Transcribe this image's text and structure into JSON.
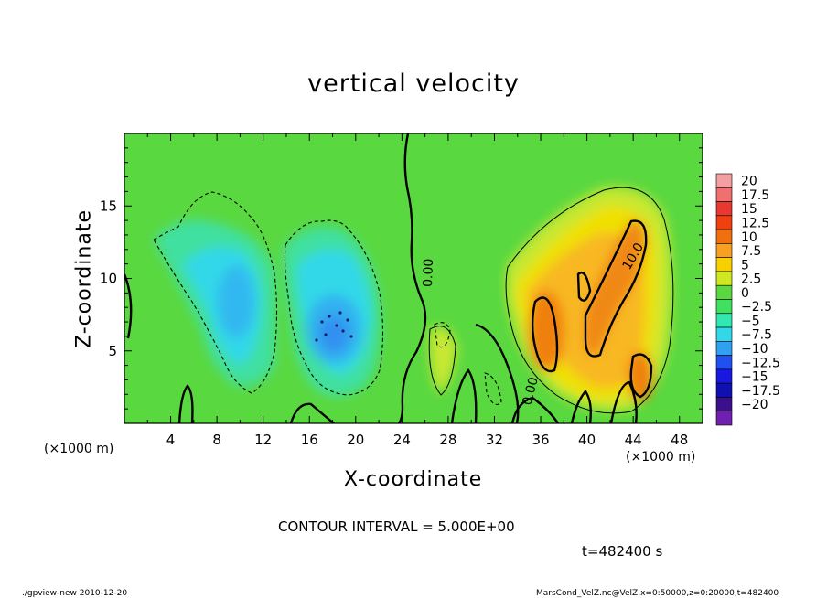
{
  "chart_data": {
    "type": "heatmap",
    "title": "vertical velocity",
    "xlabel": "X-coordinate",
    "ylabel": "Z-coordinate",
    "x_unit_left": "(×1000 m)",
    "x_unit_right": "(×1000 m)",
    "xlim": [
      0,
      50
    ],
    "ylim": [
      0,
      20
    ],
    "x_ticks": [
      4,
      8,
      12,
      16,
      20,
      24,
      28,
      32,
      36,
      40,
      44,
      48
    ],
    "y_ticks": [
      5,
      10,
      15
    ],
    "colorbar": {
      "labels": [
        "20",
        "17.5",
        "15",
        "12.5",
        "10",
        "7.5",
        "5",
        "2.5",
        "0",
        "−2.5",
        "−5",
        "−7.5",
        "−10",
        "−12.5",
        "−15",
        "−17.5",
        "−20"
      ],
      "colors": [
        "#f4a0a0",
        "#f07070",
        "#e83830",
        "#f04010",
        "#f07010",
        "#f8a020",
        "#f8d000",
        "#d0e820",
        "#5ad840",
        "#40e060",
        "#30e8b0",
        "#30d8e8",
        "#30a0f0",
        "#2050f0",
        "#1818e0",
        "#1010b0",
        "#3c108c",
        "#7020b0"
      ]
    },
    "contour_labels": [
      "0.00",
      "0.00",
      "10.0"
    ],
    "contour_interval_text": "CONTOUR INTERVAL = 5.000E+00",
    "time_text": "t=482400 s",
    "field_features": [
      {
        "kind": "downdraft",
        "x": 11.5,
        "z": 9.0,
        "value": -7
      },
      {
        "kind": "downdraft",
        "x": 17.5,
        "z": 7.5,
        "value": -8
      },
      {
        "kind": "updraft",
        "x": 36.0,
        "z": 7.5,
        "value": 12
      },
      {
        "kind": "updraft",
        "x": 42.5,
        "z": 10.0,
        "value": 10
      },
      {
        "kind": "updraft",
        "x": 44.0,
        "z": 3.5,
        "value": 10
      }
    ]
  },
  "footer": {
    "left": "./gpview-new  2010-12-20",
    "right": "MarsCond_VelZ.nc@VelZ,x=0:50000,z=0:20000,t=482400"
  }
}
